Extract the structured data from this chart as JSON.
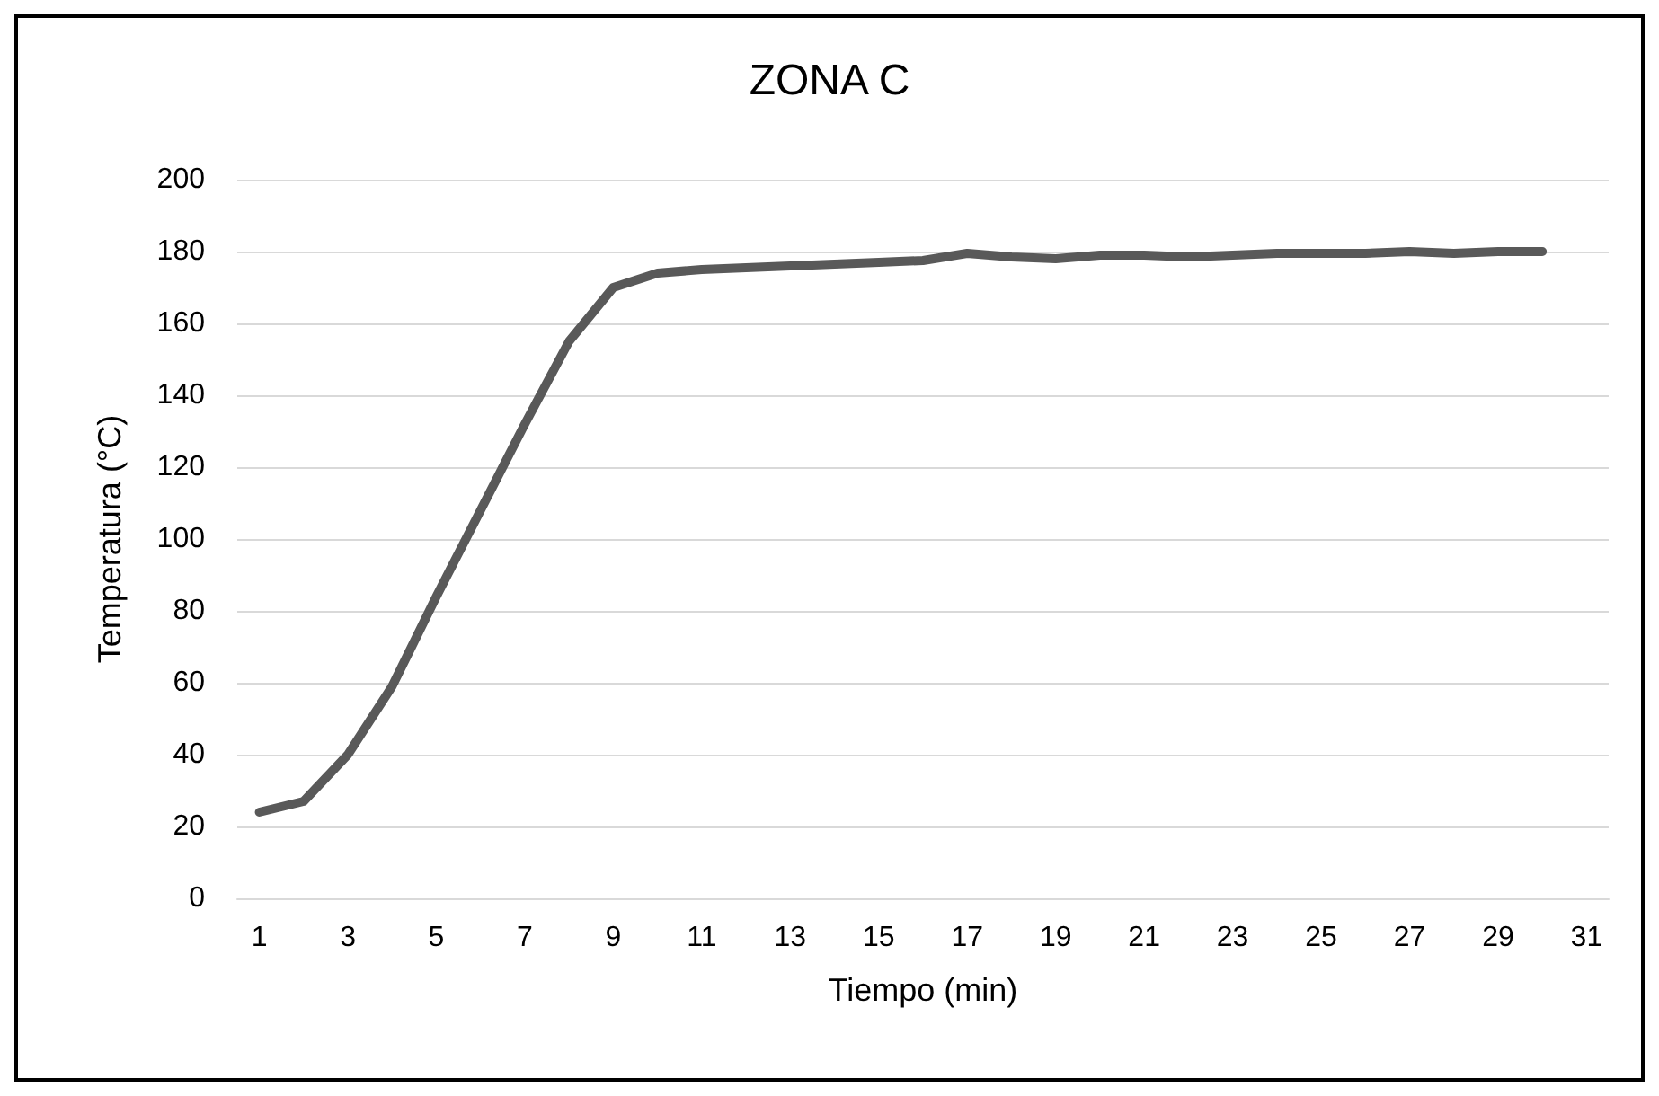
{
  "chart_data": {
    "type": "line",
    "title": "ZONA C",
    "xlabel": "Tiempo (min)",
    "ylabel": "Temperatura (°C)",
    "x": [
      1,
      2,
      3,
      4,
      5,
      6,
      7,
      8,
      9,
      10,
      11,
      12,
      13,
      14,
      15,
      16,
      17,
      18,
      19,
      20,
      21,
      22,
      23,
      24,
      25,
      26,
      27,
      28,
      29,
      30
    ],
    "series": [
      {
        "color": "#595959",
        "values": [
          24,
          27,
          40,
          59,
          84,
          108,
          132,
          155,
          170,
          174,
          175,
          175.5,
          176,
          176.5,
          177,
          177.5,
          179.5,
          178.5,
          178,
          179,
          179,
          178.5,
          179,
          179.5,
          179.5,
          179.5,
          180,
          179.5,
          180,
          180
        ]
      }
    ],
    "xlim": [
      0.5,
      31.5
    ],
    "xticks": [
      1,
      3,
      5,
      7,
      9,
      11,
      13,
      15,
      17,
      19,
      21,
      23,
      25,
      27,
      29,
      31
    ],
    "ylim": [
      0,
      200
    ],
    "yticks": [
      0,
      20,
      40,
      60,
      80,
      100,
      120,
      140,
      160,
      180,
      200
    ],
    "grid": "y",
    "marker": "none",
    "line_style": "solid"
  }
}
